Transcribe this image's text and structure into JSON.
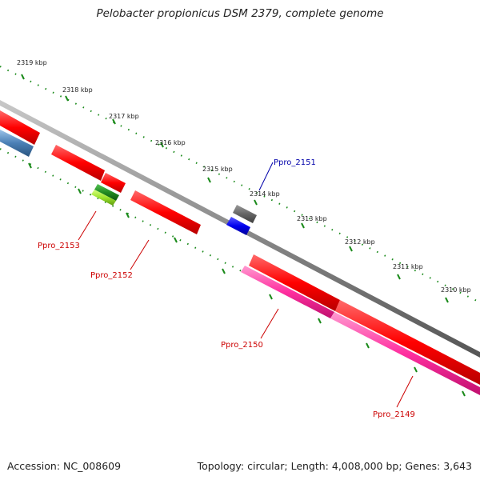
{
  "title": "Pelobacter propionicus DSM 2379, complete genome",
  "footer": {
    "accession": "Accession: NC_008609",
    "summary": "Topology: circular; Length: 4,008,000 bp; Genes: 3,643"
  },
  "ruler": {
    "ticks": [
      "2319 kbp",
      "2318 kbp",
      "2317 kbp",
      "2316 kbp",
      "2315 kbp",
      "2314 kbp",
      "2313 kbp",
      "2312 kbp",
      "2311 kbp",
      "2310 kbp"
    ]
  },
  "genes": [
    {
      "id": "Ppro_2151",
      "label": "Ppro_2151",
      "label_color": "#0000aa"
    },
    {
      "id": "Ppro_2153",
      "label": "Ppro_2153",
      "label_color": "#cc0000"
    },
    {
      "id": "Ppro_2152",
      "label": "Ppro_2152",
      "label_color": "#cc0000"
    },
    {
      "id": "Ppro_2150",
      "label": "Ppro_2150",
      "label_color": "#cc0000"
    },
    {
      "id": "Ppro_2149",
      "label": "Ppro_2149",
      "label_color": "#cc0000"
    }
  ],
  "colors": {
    "cds": "#ff0000",
    "rrna_pink": "#ff3aa5",
    "blue_gene": "#0000ee",
    "grey_gene": "#666666",
    "green_gene": "#228b22",
    "lime_gene": "#9be32b",
    "steelblue_gene": "#4a7fb5",
    "backbone": "#8a8a8a",
    "ruler_dots": "#1a8a1a"
  }
}
